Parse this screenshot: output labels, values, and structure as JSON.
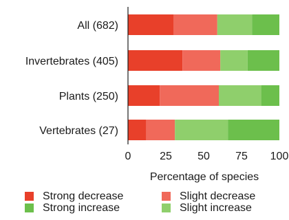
{
  "chart_data": {
    "type": "bar",
    "orientation": "horizontal",
    "stacked": true,
    "categories": [
      "All (682)",
      "Invertebrates (405)",
      "Plants (250)",
      "Vertebrates (27)"
    ],
    "series": [
      {
        "name": "Strong decrease",
        "color": "#e8402a",
        "values": [
          30,
          36,
          21,
          12
        ]
      },
      {
        "name": "Slight decrease",
        "color": "#f0695a",
        "values": [
          29,
          25,
          39,
          19
        ]
      },
      {
        "name": "Slight increase",
        "color": "#8fcf6c",
        "values": [
          23,
          18,
          28,
          35
        ]
      },
      {
        "name": "Strong increase",
        "color": "#6cbf4c",
        "values": [
          18,
          21,
          12,
          34
        ]
      }
    ],
    "xlabel": "Percentage of species",
    "xlim": [
      0,
      100
    ],
    "xticks": [
      0,
      25,
      50,
      75,
      100
    ],
    "grid": false,
    "legend_position": "bottom",
    "legend_order": [
      "Strong decrease",
      "Slight decrease",
      "Strong increase",
      "Slight increase"
    ]
  }
}
